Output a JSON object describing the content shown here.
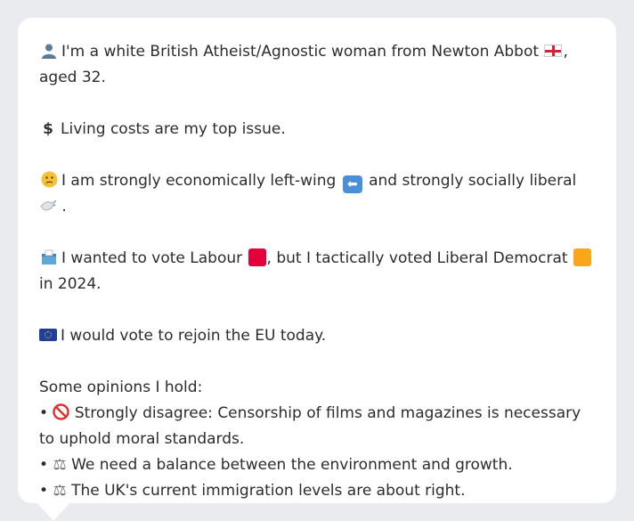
{
  "profile": {
    "intro": {
      "icon": "person-silhouette-icon",
      "text_before_flag": "I'm a white British Atheist/Agnostic woman from Newton Abbot",
      "text_after_flag": ", aged 32."
    },
    "issue": {
      "icon": "dollar-icon",
      "text": "Living costs are my top issue."
    },
    "politics": {
      "icon": "thinking-face-icon",
      "text_1": "I am strongly economically left-wing",
      "text_2": "and strongly socially liberal",
      "text_3": "."
    },
    "vote": {
      "icon": "ballot-box-icon",
      "text_1": "I wanted to vote Labour",
      "text_2": ", but I tactically voted Liberal Democrat",
      "text_3": "in 2024.",
      "labour_color": "#e4003b",
      "libdem_color": "#faa61a"
    },
    "eu": {
      "icon": "eu-flag-icon",
      "text": "I would vote to rejoin the EU today."
    },
    "opinions": {
      "heading": "Some opinions I hold:",
      "items": [
        {
          "bullet": "•",
          "icon": "prohibited-icon",
          "glyph": "🚫",
          "text": "Strongly disagree: Censorship of films and magazines is necessary to uphold moral standards."
        },
        {
          "bullet": "•",
          "icon": "balance-scale-icon",
          "glyph": "⚖",
          "text": "We need a balance between the environment and growth."
        },
        {
          "bullet": "•",
          "icon": "balance-scale-icon",
          "glyph": "⚖",
          "text": "The UK's current immigration levels are about right."
        }
      ]
    }
  }
}
